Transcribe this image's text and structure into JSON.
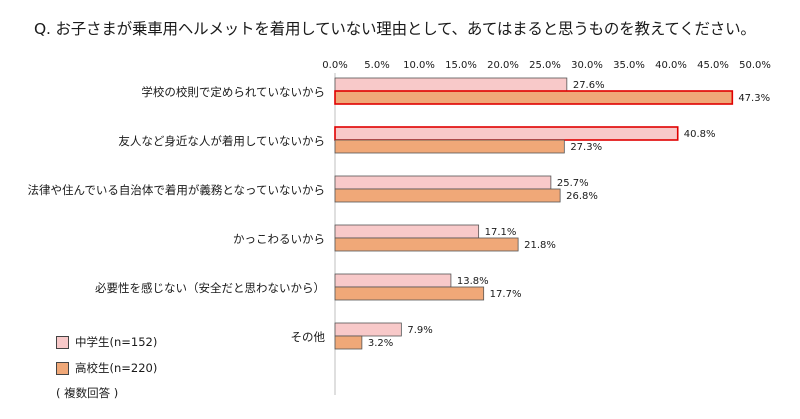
{
  "question": "Q. お子さまが乗車用ヘルメットを着用していない理由として、あてはまると思うものを教えてください。",
  "note": "( 複数回答 )",
  "chart_data": {
    "type": "bar",
    "orientation": "horizontal",
    "xlim": [
      0,
      50
    ],
    "ticks": [
      "0.0%",
      "5.0%",
      "10.0%",
      "15.0%",
      "20.0%",
      "25.0%",
      "30.0%",
      "35.0%",
      "40.0%",
      "45.0%",
      "50.0%"
    ],
    "tick_values": [
      0,
      5,
      10,
      15,
      20,
      25,
      30,
      35,
      40,
      45,
      50
    ],
    "categories": [
      "学校の校則で定められていないから",
      "友人など身近な人が着用していないから",
      "法律や住んでいる自治体で着用が義務となっていないから",
      "かっこわるいから",
      "必要性を感じない（安全だと思わないから）",
      "その他"
    ],
    "series": [
      {
        "name": "中学生(n=152)",
        "color": "#f8c9c9",
        "values": [
          27.6,
          40.8,
          25.7,
          17.1,
          13.8,
          7.9
        ],
        "labels": [
          "27.6%",
          "40.8%",
          "25.7%",
          "17.1%",
          "13.8%",
          "7.9%"
        ],
        "highlight": [
          false,
          true,
          false,
          false,
          false,
          false
        ]
      },
      {
        "name": "高校生(n=220)",
        "color": "#f0a878",
        "values": [
          47.3,
          27.3,
          26.8,
          21.8,
          17.7,
          3.2
        ],
        "labels": [
          "47.3%",
          "27.3%",
          "26.8%",
          "21.8%",
          "17.7%",
          "3.2%"
        ],
        "highlight": [
          true,
          false,
          false,
          false,
          false,
          false
        ]
      }
    ],
    "highlight_color": "#e00000",
    "grid": false,
    "legend_position": "bottom-left"
  }
}
